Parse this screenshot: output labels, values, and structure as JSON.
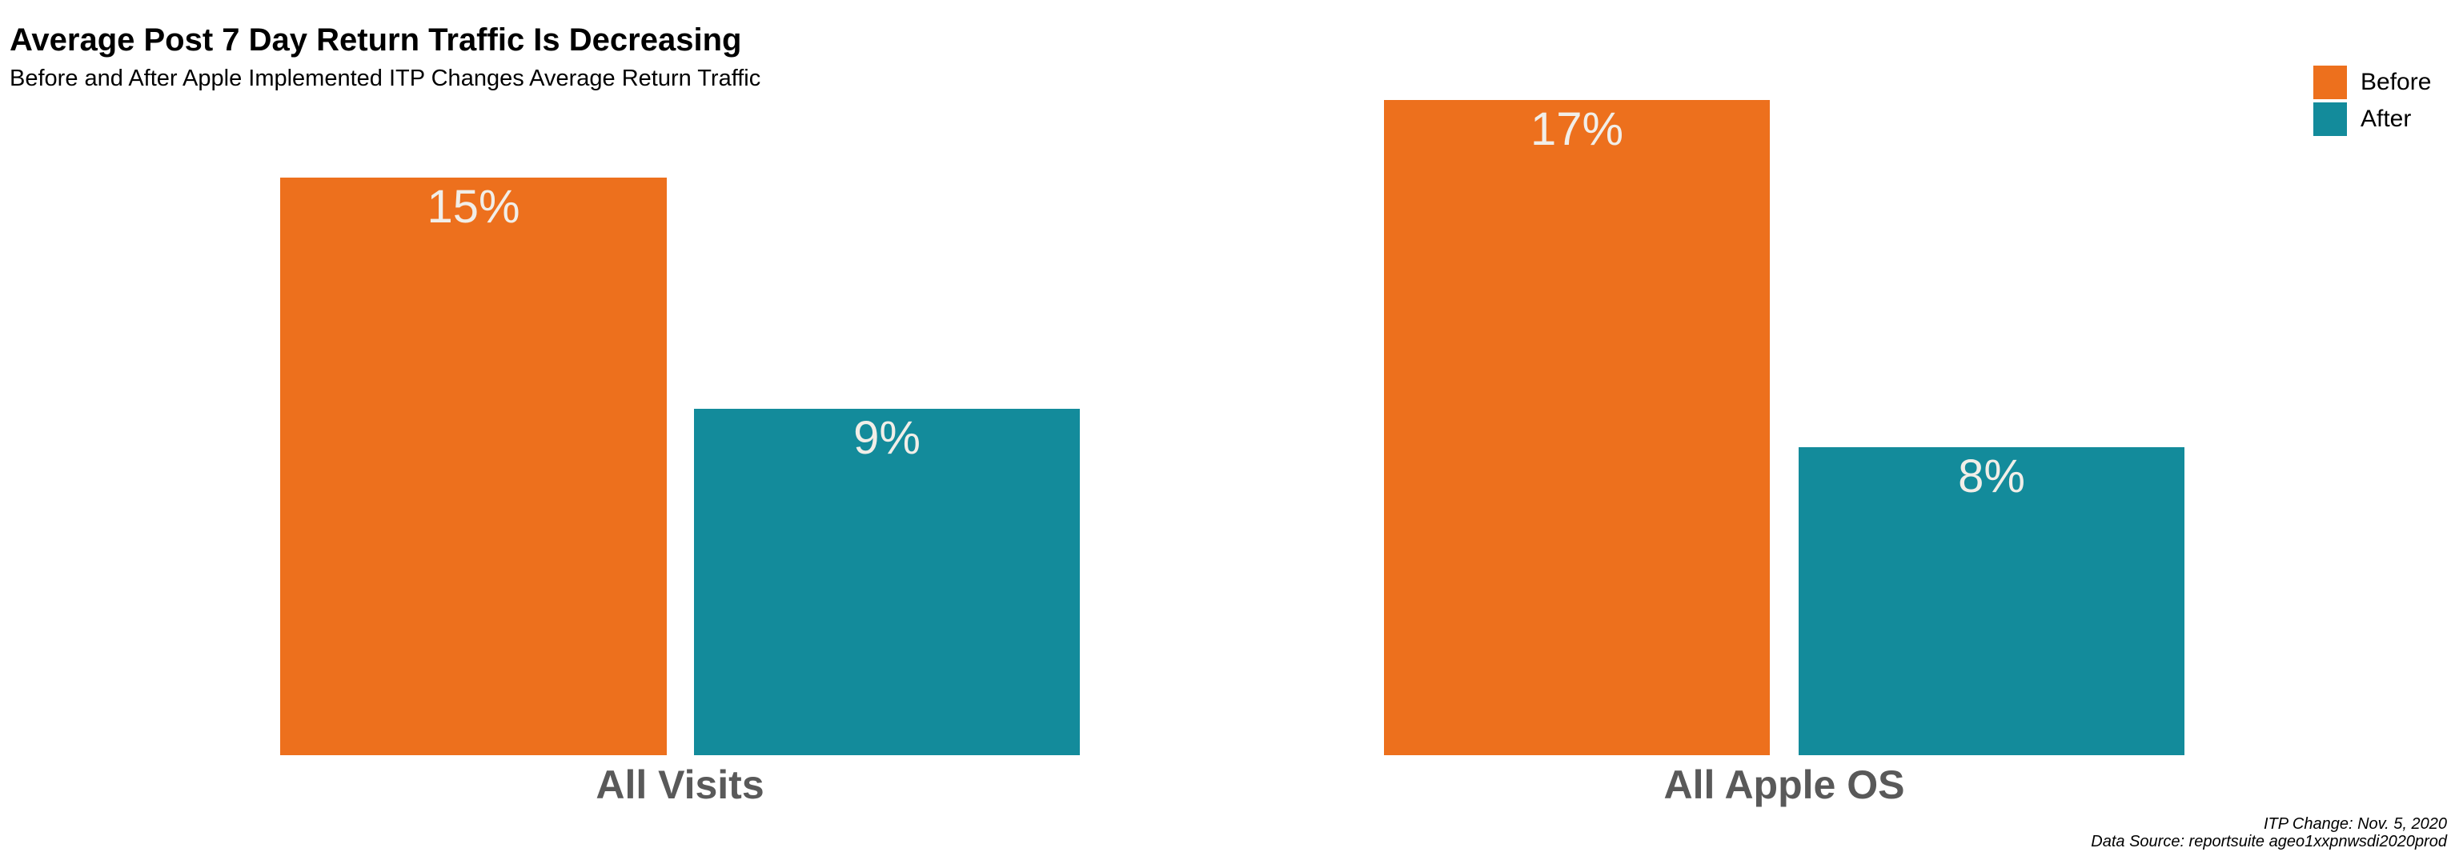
{
  "chart_data": {
    "type": "bar",
    "title": "Average Post 7 Day Return Traffic Is Decreasing",
    "subtitle": "Before and After Apple Implemented ITP Changes Average Return Traffic",
    "categories": [
      "All Visits",
      "All Apple OS"
    ],
    "series": [
      {
        "name": "Before",
        "color": "#ED701D",
        "values": [
          15,
          17
        ],
        "labels": [
          "15%",
          "17%"
        ]
      },
      {
        "name": "After",
        "color": "#138B9B",
        "values": [
          9,
          8
        ],
        "labels": [
          "9%",
          "8%"
        ]
      }
    ],
    "value_format": "percent",
    "ylim": [
      0,
      19.6
    ],
    "grid": false,
    "axes_visible": false,
    "legend_position": "top-right",
    "annotations": [
      "ITP Change: Nov. 5, 2020",
      "Data Source: reportsuite ageo1xxpnwsdi2020prod"
    ],
    "colors": {
      "category_label": "#595959",
      "bar_value_label": "#F1EEE8",
      "title": "#000000",
      "background": "#FFFFFF"
    }
  }
}
